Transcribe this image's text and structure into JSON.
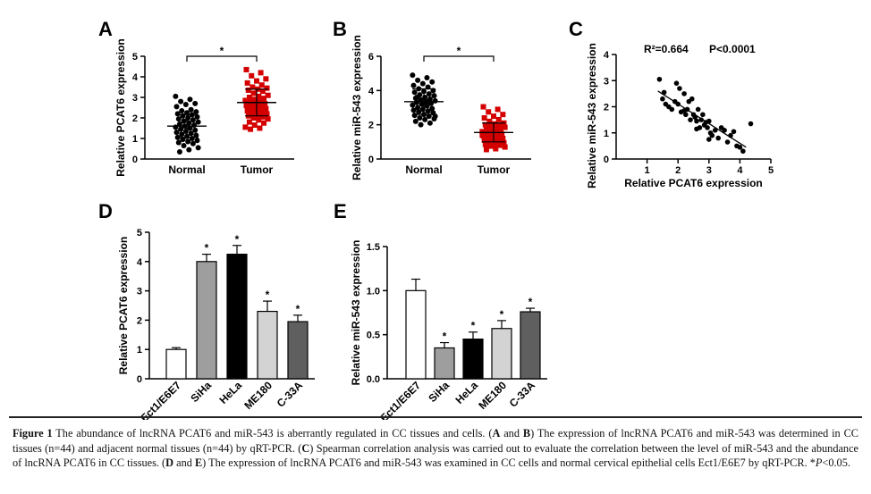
{
  "chart_data": [
    {
      "id": "A",
      "type": "scatter",
      "panel_label": "A",
      "ylabel": "Relative PCAT6 expression",
      "categories": [
        "Normal",
        "Tumor"
      ],
      "ylim": [
        0,
        5
      ],
      "yticks": [
        0,
        1,
        2,
        3,
        4,
        5
      ],
      "significance": "*",
      "series": [
        {
          "name": "Normal",
          "color": "#000000",
          "mean": 1.6,
          "sd": 0.55,
          "values": [
            3.05,
            2.9,
            2.8,
            2.7,
            2.65,
            2.55,
            2.4,
            2.35,
            2.3,
            2.25,
            2.2,
            2.15,
            2.1,
            2.05,
            2.0,
            1.95,
            1.9,
            1.85,
            1.8,
            1.75,
            1.7,
            1.65,
            1.6,
            1.55,
            1.5,
            1.45,
            1.4,
            1.35,
            1.3,
            1.25,
            1.2,
            1.15,
            1.1,
            1.05,
            1.0,
            0.95,
            0.9,
            0.85,
            0.8,
            0.75,
            0.65,
            0.55,
            0.45,
            0.35
          ]
        },
        {
          "name": "Tumor",
          "color": "#d40000",
          "mean": 2.75,
          "sd": 0.65,
          "values": [
            4.35,
            4.2,
            4.05,
            3.9,
            3.8,
            3.7,
            3.6,
            3.5,
            3.45,
            3.4,
            3.35,
            3.3,
            3.2,
            3.1,
            3.05,
            3.0,
            2.95,
            2.9,
            2.85,
            2.8,
            2.75,
            2.7,
            2.65,
            2.6,
            2.55,
            2.5,
            2.45,
            2.4,
            2.35,
            2.3,
            2.25,
            2.2,
            2.15,
            2.1,
            2.05,
            2.0,
            1.95,
            1.9,
            1.8,
            1.75,
            1.65,
            1.55,
            1.5,
            1.45
          ]
        }
      ]
    },
    {
      "id": "B",
      "type": "scatter",
      "panel_label": "B",
      "ylabel": "Relative miR-543 expression",
      "categories": [
        "Normal",
        "Tumor"
      ],
      "ylim": [
        0,
        6
      ],
      "yticks": [
        0,
        2,
        4,
        6
      ],
      "significance": "*",
      "series": [
        {
          "name": "Normal",
          "color": "#000000",
          "mean": 3.35,
          "sd": 0.75,
          "values": [
            4.9,
            4.75,
            4.6,
            4.5,
            4.4,
            4.3,
            4.2,
            4.1,
            4.0,
            3.95,
            3.9,
            3.8,
            3.75,
            3.7,
            3.6,
            3.55,
            3.5,
            3.45,
            3.4,
            3.35,
            3.3,
            3.25,
            3.2,
            3.15,
            3.1,
            3.0,
            2.95,
            2.9,
            2.85,
            2.8,
            2.75,
            2.7,
            2.6,
            2.55,
            2.5,
            2.4,
            2.35,
            2.3,
            2.2,
            2.1,
            2.0,
            2.5,
            3.3,
            3.6
          ]
        },
        {
          "name": "Tumor",
          "color": "#d40000",
          "mean": 1.55,
          "sd": 0.55,
          "values": [
            3.05,
            2.9,
            2.75,
            2.6,
            2.5,
            2.4,
            2.3,
            2.2,
            2.1,
            2.05,
            2.0,
            1.95,
            1.9,
            1.85,
            1.8,
            1.75,
            1.7,
            1.65,
            1.6,
            1.55,
            1.5,
            1.45,
            1.4,
            1.35,
            1.3,
            1.25,
            1.2,
            1.15,
            1.1,
            1.05,
            1.0,
            0.95,
            0.9,
            0.85,
            0.8,
            0.75,
            0.7,
            0.6,
            0.55,
            1.6,
            1.5,
            1.4,
            1.7,
            1.3
          ]
        }
      ]
    },
    {
      "id": "C",
      "type": "scatter",
      "panel_label": "C",
      "annotation_r2": "R²=0.664",
      "annotation_p": "P<0.0001",
      "xlabel": "Relative PCAT6 expression",
      "ylabel": "Relative miR-543 expression",
      "xlim": [
        0,
        5
      ],
      "ylim": [
        0,
        4
      ],
      "xticks": [
        1,
        2,
        3,
        4,
        5
      ],
      "yticks": [
        0,
        1,
        2,
        3,
        4
      ],
      "fit_line": {
        "x": [
          1.35,
          4.2
        ],
        "y": [
          2.6,
          0.45
        ]
      },
      "x": [
        1.4,
        1.5,
        1.6,
        1.7,
        1.8,
        1.9,
        1.95,
        2.0,
        2.05,
        2.1,
        2.2,
        2.25,
        2.3,
        2.35,
        2.4,
        2.45,
        2.5,
        2.55,
        2.6,
        2.65,
        2.7,
        2.75,
        2.8,
        2.85,
        2.9,
        2.95,
        3.0,
        3.05,
        3.1,
        3.2,
        3.3,
        3.4,
        3.5,
        3.6,
        3.7,
        3.8,
        3.9,
        4.0,
        4.1,
        4.35,
        2.6,
        2.2,
        3.0,
        1.55
      ],
      "y": [
        3.05,
        2.3,
        2.1,
        2.0,
        1.9,
        2.2,
        2.9,
        2.1,
        2.7,
        1.8,
        2.5,
        1.7,
        1.9,
        2.2,
        1.5,
        2.3,
        1.7,
        1.6,
        1.45,
        1.9,
        1.2,
        1.5,
        1.7,
        1.3,
        1.4,
        1.2,
        1.45,
        1.0,
        0.9,
        1.1,
        0.8,
        1.2,
        1.1,
        0.65,
        0.9,
        1.05,
        0.5,
        0.45,
        0.3,
        1.35,
        1.15,
        1.85,
        0.75,
        2.55
      ]
    },
    {
      "id": "D",
      "type": "bar",
      "panel_label": "D",
      "ylabel": "Relative PCAT6 expression",
      "categories": [
        "Ect1/E6E7",
        "SiHa",
        "HeLa",
        "ME180",
        "C-33A"
      ],
      "values": [
        1.0,
        4.0,
        4.25,
        2.3,
        1.95
      ],
      "errors": [
        0.06,
        0.25,
        0.3,
        0.35,
        0.22
      ],
      "significance": [
        "",
        "*",
        "*",
        "*",
        "*"
      ],
      "colors": [
        "#ffffff",
        "#9e9e9e",
        "#000000",
        "#d3d3d3",
        "#5f5f5f"
      ],
      "ylim": [
        0,
        5
      ],
      "yticks": [
        0,
        1,
        2,
        3,
        4,
        5
      ]
    },
    {
      "id": "E",
      "type": "bar",
      "panel_label": "E",
      "ylabel": "Relative miR-543 expression",
      "categories": [
        "Ect1/E6E7",
        "SiHa",
        "HeLa",
        "ME180",
        "C-33A"
      ],
      "values": [
        1.0,
        0.35,
        0.45,
        0.57,
        0.76
      ],
      "errors": [
        0.13,
        0.06,
        0.08,
        0.09,
        0.04
      ],
      "significance": [
        "",
        "*",
        "*",
        "*",
        "*"
      ],
      "colors": [
        "#ffffff",
        "#9e9e9e",
        "#000000",
        "#d3d3d3",
        "#5f5f5f"
      ],
      "ylim": [
        0,
        1.5
      ],
      "yticks": [
        0.0,
        0.5,
        1.0,
        1.5
      ]
    }
  ],
  "caption": {
    "fig_label": "Figure 1",
    "p1": " The abundance of lncRNA PCAT6 and miR-543 is aberrantly regulated in CC tissues and cells. (",
    "b1": "A",
    "p2": " and ",
    "b2": "B",
    "p3": ") The expression of lncRNA PCAT6 and miR-543 was determined in CC tissues (n=44) and adjacent normal tissues (n=44) by qRT-PCR. (",
    "b3": "C",
    "p4": ") Spearman correlation analysis was carried out to evaluate the correlation between the level of miR-543 and the abundance of lncRNA PCAT6 in CC tissues. (",
    "b4": "D",
    "p5": " and ",
    "b5": "E",
    "p6": ") The expression of lncRNA PCAT6 and miR-543 was examined in CC cells and normal cervical epithelial cells Ect1/E6E7 by qRT-PCR. *",
    "p_italic": "P",
    "p7": "<0.05."
  }
}
